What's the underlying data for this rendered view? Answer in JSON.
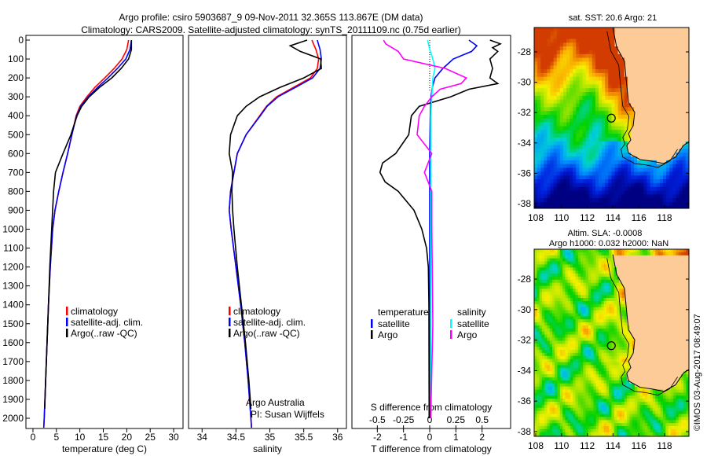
{
  "title": {
    "line1": "Argo profile: csiro 5903687_9 09-Nov-2011 32.365S 113.867E (DM data)",
    "line2": "Climatology: CARS2009. Satellite-adjusted climatology: synTS_20111109.nc (0.75d earlier)"
  },
  "copyright": "©IMOS 03-Aug-2017 08:49:07",
  "colors": {
    "climatology": "#ff0000",
    "satellite": "#0000ff",
    "argo": "#000000",
    "sal_sat": "#00ffff",
    "sal_argo": "#ff00ff",
    "land": "#fccb97"
  },
  "chart_data": [
    {
      "type": "line",
      "id": "temperature",
      "xlabel": "temperature (deg C)",
      "xlim": [
        -1.5,
        32
      ],
      "ylim": [
        2050,
        0
      ],
      "xticks": [
        0,
        5,
        10,
        15,
        20,
        25,
        30
      ],
      "yticks": [
        0,
        100,
        200,
        300,
        400,
        500,
        600,
        700,
        800,
        900,
        1000,
        1100,
        1200,
        1300,
        1400,
        1500,
        1600,
        1700,
        1800,
        1900,
        2000
      ],
      "legend": [
        "climatology",
        "satellite-adj. clim.",
        "Argo(..raw -QC)"
      ],
      "series": [
        {
          "name": "climatology",
          "color": "#ff0000",
          "depth": [
            0,
            50,
            100,
            150,
            200,
            250,
            300,
            350,
            400,
            500,
            600,
            700,
            800,
            900,
            1000,
            1200,
            1400,
            1600,
            1800,
            2000,
            2050
          ],
          "values": [
            20.4,
            20,
            19,
            17.3,
            15.3,
            13.2,
            11.5,
            10,
            9.2,
            8.3,
            7.4,
            6.4,
            5.5,
            4.7,
            4.2,
            3.7,
            3.3,
            3.0,
            2.7,
            2.4,
            2.3
          ]
        },
        {
          "name": "satellite-adj. clim.",
          "color": "#0000ff",
          "depth": [
            0,
            50,
            100,
            150,
            200,
            250,
            300,
            350,
            400,
            500,
            600,
            700,
            800,
            900,
            1000,
            1200,
            1400,
            1600,
            1800,
            2000,
            2050
          ],
          "values": [
            21,
            20.7,
            19.8,
            18,
            16,
            13.8,
            11.8,
            10.2,
            9.3,
            8.3,
            7.4,
            6.4,
            5.5,
            4.7,
            4.2,
            3.7,
            3.3,
            3.0,
            2.7,
            2.4,
            2.3
          ]
        },
        {
          "name": "Argo(..raw -QC)",
          "color": "#000000",
          "depth": [
            0,
            50,
            100,
            150,
            200,
            250,
            300,
            350,
            400,
            500,
            600,
            700,
            800,
            900,
            1000,
            1200,
            1400,
            1600,
            1800,
            1950
          ],
          "values": [
            21,
            21,
            20.4,
            18.8,
            16.8,
            14.2,
            12,
            10.4,
            9.4,
            8.1,
            6.4,
            4.8,
            4.4,
            4.2,
            4.0,
            3.6,
            3.3,
            3.0,
            2.7,
            2.5
          ]
        }
      ]
    },
    {
      "type": "line",
      "id": "salinity",
      "xlabel": "salinity",
      "xlim": [
        33.8,
        36.13
      ],
      "ylim": [
        2050,
        0
      ],
      "xticks": [
        34,
        34.5,
        35,
        35.5,
        36
      ],
      "legend": [
        "climatology",
        "satellite-adj. clim.",
        "Argo(..raw -QC)"
      ],
      "annotation": [
        "Argo Australia",
        "PI: Susan Wijffels"
      ],
      "series": [
        {
          "name": "climatology",
          "color": "#ff0000",
          "depth": [
            0,
            50,
            100,
            150,
            200,
            250,
            300,
            350,
            400,
            500,
            600,
            700,
            800,
            900,
            1000,
            1200,
            1400,
            1600,
            1800,
            2000,
            2050
          ],
          "values": [
            35.62,
            35.68,
            35.72,
            35.7,
            35.6,
            35.35,
            35.1,
            34.95,
            34.85,
            34.65,
            34.52,
            34.47,
            34.42,
            34.4,
            34.43,
            34.5,
            34.57,
            34.63,
            34.68,
            34.72,
            34.73
          ]
        },
        {
          "name": "satellite-adj. clim.",
          "color": "#0000ff",
          "depth": [
            0,
            50,
            100,
            150,
            200,
            250,
            300,
            350,
            400,
            500,
            600,
            700,
            800,
            900,
            1000,
            1200,
            1400,
            1600,
            1800,
            2000,
            2050
          ],
          "values": [
            35.7,
            35.74,
            35.76,
            35.74,
            35.63,
            35.38,
            35.12,
            34.96,
            34.86,
            34.65,
            34.52,
            34.47,
            34.42,
            34.4,
            34.43,
            34.5,
            34.57,
            34.63,
            34.68,
            34.72,
            34.73
          ]
        },
        {
          "name": "Argo(..raw -QC)",
          "color": "#000000",
          "depth": [
            0,
            30,
            60,
            100,
            150,
            200,
            250,
            300,
            350,
            400,
            500,
            600,
            700,
            800,
            900,
            1000,
            1200,
            1400,
            1600,
            1800,
            1950
          ],
          "values": [
            35.55,
            35.3,
            35.45,
            35.75,
            35.76,
            35.5,
            35.15,
            34.85,
            34.65,
            34.52,
            34.42,
            34.4,
            34.45,
            34.44,
            34.45,
            34.47,
            34.52,
            34.58,
            34.64,
            34.69,
            34.72
          ]
        }
      ]
    },
    {
      "type": "line",
      "id": "difference",
      "xlabel": "T difference from climatology",
      "xlabel2": "S difference from climatology",
      "xlim": [
        -2.97,
        3.09
      ],
      "ylim": [
        2050,
        0
      ],
      "xticks": [
        -2,
        -1,
        0,
        1,
        2
      ],
      "xticks_s": [
        -0.5,
        -0.25,
        0,
        0.25,
        0.5
      ],
      "legend_titles": [
        "temperature",
        "salinity"
      ],
      "legend": [
        "satellite",
        "Argo",
        "satellite",
        "Argo"
      ],
      "series": [
        {
          "name": "T satellite",
          "color": "#0000ff",
          "unit": "T",
          "depth": [
            0,
            30,
            60,
            100,
            150,
            200,
            250,
            300,
            400,
            600,
            1000,
            2000
          ],
          "values": [
            1.5,
            1.8,
            1.6,
            0.9,
            0.5,
            0.2,
            0.1,
            0.05,
            0.02,
            0.0,
            0.0,
            0.0
          ]
        },
        {
          "name": "T Argo",
          "color": "#000000",
          "unit": "T",
          "depth": [
            0,
            20,
            40,
            60,
            100,
            150,
            200,
            230,
            260,
            300,
            350,
            400,
            500,
            600,
            650,
            700,
            750,
            800,
            900,
            1000,
            1100,
            1200,
            1400,
            2000
          ],
          "values": [
            2.3,
            2.7,
            2.4,
            2.6,
            2.3,
            2.4,
            2.3,
            2.6,
            1.5,
            0.8,
            -0.4,
            -0.7,
            -0.8,
            -1.3,
            -1.8,
            -1.9,
            -1.7,
            -1.2,
            -0.6,
            -0.3,
            -0.12,
            -0.05,
            -0.03,
            -0.02
          ]
        },
        {
          "name": "S satellite",
          "color": "#00ffff",
          "unit": "S",
          "depth": [
            0,
            50,
            100,
            150,
            200,
            300,
            400,
            600,
            1000,
            1500,
            2000
          ],
          "values": [
            -0.02,
            0.0,
            0.03,
            0.05,
            0.03,
            0.02,
            0.01,
            0.01,
            0.01,
            0.01,
            0.01
          ]
        },
        {
          "name": "S Argo",
          "color": "#ff00ff",
          "unit": "S",
          "depth": [
            0,
            20,
            60,
            100,
            150,
            200,
            230,
            260,
            300,
            350,
            400,
            500,
            600,
            700,
            800,
            1000,
            1500,
            2000
          ],
          "values": [
            -0.44,
            -0.42,
            -0.3,
            -0.25,
            0.15,
            0.35,
            0.3,
            0.1,
            0.02,
            -0.05,
            -0.1,
            -0.12,
            0.02,
            -0.05,
            0.02,
            0.02,
            0.03,
            0.01
          ]
        }
      ]
    },
    {
      "type": "heatmap",
      "id": "sst_map",
      "title": "sat. SST: 20.6 Argo: 21",
      "xlim": [
        107.9,
        119.9
      ],
      "ylim": [
        -38.4,
        -26.4
      ],
      "xticks": [
        108,
        110,
        112,
        114,
        116,
        118
      ],
      "yticks": [
        -28,
        -30,
        -32,
        -34,
        -36,
        -38
      ],
      "argo_position": [
        113.867,
        -32.365
      ]
    },
    {
      "type": "heatmap",
      "id": "sla_map",
      "title": "Altim. SLA: -0.0008",
      "subtitle": "Argo h1000: 0.032 h2000: NaN",
      "xlim": [
        107.9,
        119.9
      ],
      "ylim": [
        -38.4,
        -26.4
      ],
      "xticks": [
        108,
        110,
        112,
        114,
        116,
        118
      ],
      "yticks": [
        -28,
        -30,
        -32,
        -34,
        -36,
        -38
      ],
      "argo_position": [
        113.867,
        -32.365
      ]
    }
  ],
  "coastline": [
    [
      113.98,
      -26.39
    ],
    [
      114.28,
      -27.69
    ],
    [
      114.89,
      -28.62
    ],
    [
      115.01,
      -29.76
    ],
    [
      115.2,
      -31.32
    ],
    [
      115.68,
      -31.99
    ],
    [
      115.56,
      -32.87
    ],
    [
      115.2,
      -33.39
    ],
    [
      115.38,
      -33.8
    ],
    [
      115.07,
      -34.17
    ],
    [
      115.2,
      -34.68
    ],
    [
      116.11,
      -35.1
    ],
    [
      117.02,
      -35.2
    ],
    [
      117.94,
      -35.36
    ],
    [
      118.85,
      -34.94
    ],
    [
      119.46,
      -34.17
    ],
    [
      119.9,
      -33.91
    ],
    [
      119.9,
      -26.39
    ]
  ]
}
